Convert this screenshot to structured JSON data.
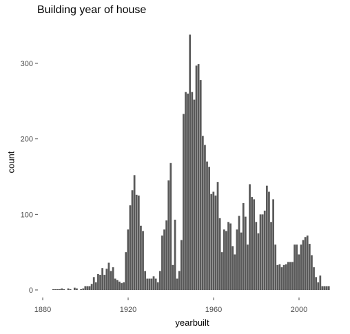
{
  "chart_data": {
    "type": "bar",
    "title": "Building year of house",
    "xlabel": "yearbuilt",
    "ylabel": "count",
    "xlim": [
      1875,
      2015
    ],
    "ylim": [
      0,
      345
    ],
    "grid": false,
    "x_ticks": [
      "1880",
      "1920",
      "1960",
      "2000"
    ],
    "y_ticks": [
      "0",
      "100",
      "200",
      "300"
    ],
    "bar_color": "#595959",
    "series": [
      {
        "x": [
          1885,
          1886,
          1887,
          1888,
          1889,
          1890,
          1892,
          1893,
          1895,
          1896,
          1898,
          1899,
          1900,
          1901,
          1902,
          1903,
          1904,
          1905,
          1906,
          1907,
          1908,
          1909,
          1910,
          1911,
          1912,
          1913,
          1914,
          1915,
          1916,
          1917,
          1918,
          1919,
          1920,
          1921,
          1922,
          1923,
          1924,
          1925,
          1926,
          1927,
          1928,
          1929,
          1930,
          1931,
          1932,
          1933,
          1934,
          1935,
          1936,
          1937,
          1938,
          1939,
          1940,
          1941,
          1942,
          1943,
          1944,
          1945,
          1946,
          1947,
          1948,
          1949,
          1950,
          1951,
          1952,
          1953,
          1954,
          1955,
          1956,
          1957,
          1958,
          1959,
          1960,
          1961,
          1962,
          1963,
          1964,
          1965,
          1966,
          1967,
          1968,
          1969,
          1970,
          1971,
          1972,
          1973,
          1974,
          1975,
          1976,
          1977,
          1978,
          1979,
          1980,
          1981,
          1982,
          1983,
          1984,
          1985,
          1986,
          1987,
          1988,
          1989,
          1990,
          1991,
          1992,
          1993,
          1994,
          1995,
          1996,
          1997,
          1998,
          1999,
          2000,
          2001,
          2002,
          2003,
          2004,
          2005,
          2006,
          2007,
          2008,
          2009,
          2010,
          2011,
          2012,
          2013,
          2014
        ],
        "values": [
          1,
          1,
          1,
          1,
          2,
          1,
          2,
          1,
          3,
          2,
          1,
          2,
          5,
          5,
          5,
          8,
          17,
          10,
          21,
          20,
          29,
          20,
          28,
          36,
          25,
          30,
          15,
          13,
          11,
          9,
          10,
          50,
          80,
          112,
          132,
          152,
          126,
          125,
          85,
          78,
          25,
          15,
          15,
          15,
          18,
          15,
          10,
          25,
          72,
          80,
          92,
          145,
          168,
          33,
          93,
          15,
          25,
          66,
          233,
          262,
          260,
          338,
          262,
          252,
          297,
          299,
          278,
          204,
          192,
          170,
          163,
          127,
          130,
          125,
          143,
          95,
          50,
          80,
          78,
          90,
          88,
          58,
          47,
          80,
          98,
          76,
          115,
          97,
          60,
          140,
          123,
          120,
          90,
          75,
          100,
          100,
          105,
          138,
          130,
          90,
          120,
          60,
          33,
          34,
          30,
          33,
          34,
          37,
          37,
          37,
          60,
          60,
          47,
          60,
          66,
          70,
          72,
          61,
          46,
          30,
          17,
          10,
          19,
          5,
          5,
          5,
          5
        ],
        "values_note": "x shown offsets not included"
      }
    ]
  }
}
